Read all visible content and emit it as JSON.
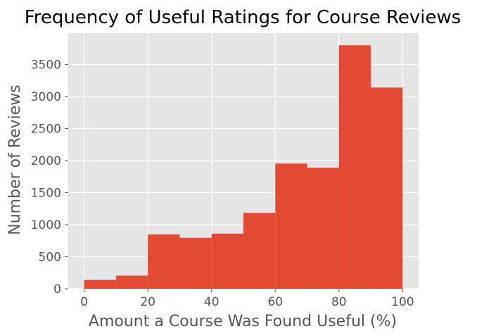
{
  "chart_data": {
    "type": "bar",
    "title": "Frequency of Useful Ratings for Course Reviews",
    "xlabel": "Amount a Course Was Found Useful (%)",
    "ylabel": "Number of Reviews",
    "bins": [
      {
        "x0": 0,
        "x1": 10,
        "value": 140
      },
      {
        "x0": 10,
        "x1": 20,
        "value": 205
      },
      {
        "x0": 20,
        "x1": 30,
        "value": 850
      },
      {
        "x0": 30,
        "x1": 40,
        "value": 795
      },
      {
        "x0": 40,
        "x1": 50,
        "value": 860
      },
      {
        "x0": 50,
        "x1": 60,
        "value": 1185
      },
      {
        "x0": 60,
        "x1": 70,
        "value": 1955
      },
      {
        "x0": 70,
        "x1": 80,
        "value": 1890
      },
      {
        "x0": 80,
        "x1": 90,
        "value": 3800
      },
      {
        "x0": 90,
        "x1": 100,
        "value": 3140
      }
    ],
    "xticks": [
      "0",
      "20",
      "40",
      "60",
      "80",
      "100"
    ],
    "yticks": [
      "0",
      "500",
      "1000",
      "1500",
      "2000",
      "2500",
      "3000",
      "3500"
    ],
    "xlim": [
      -5,
      105
    ],
    "ylim": [
      0,
      3990
    ],
    "grid": true,
    "colors": {
      "bar": "#E24A33",
      "plot_background": "#E5E5E5",
      "grid": "#FFFFFF",
      "tick_text": "#555555"
    }
  }
}
